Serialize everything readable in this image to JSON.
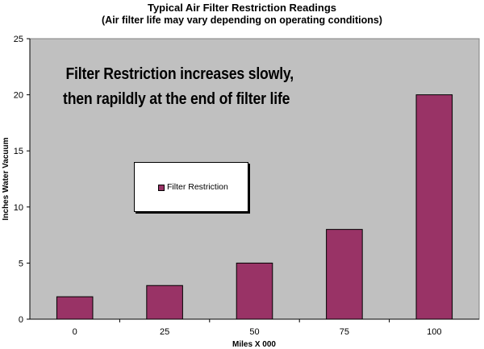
{
  "chart_data": {
    "type": "bar",
    "title": "Typical Air Filter Restriction Readings",
    "subtitle": "(Air filter life may vary depending on operating conditions)",
    "xlabel": "Miles X 000",
    "ylabel": "Inches Water Vacuum",
    "categories": [
      "0",
      "25",
      "50",
      "75",
      "100"
    ],
    "series": [
      {
        "name": "Filter Restriction",
        "values": [
          2,
          3,
          5,
          8,
          20
        ]
      }
    ],
    "ylim": [
      0,
      25
    ],
    "yticks": [
      "0",
      "5",
      "10",
      "15",
      "20",
      "25"
    ],
    "annotation_line1": "Filter Restriction increases slowly,",
    "annotation_line2": "then rapildly at the end  of filter life",
    "legend_position": "center-left",
    "grid": false,
    "colors": {
      "plot_area": "#c0c0c0",
      "bar": "#993366"
    }
  }
}
